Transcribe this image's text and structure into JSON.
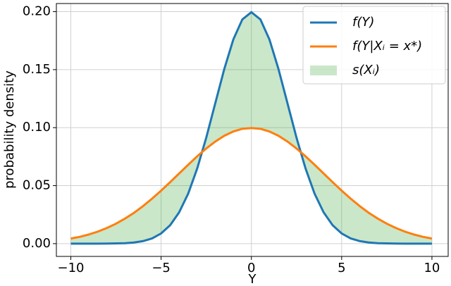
{
  "chart_data": {
    "type": "line",
    "x": [
      -10,
      -9.5,
      -9,
      -8.5,
      -8,
      -7.5,
      -7,
      -6.5,
      -6,
      -5.5,
      -5,
      -4.5,
      -4,
      -3.5,
      -3,
      -2.5,
      -2,
      -1.5,
      -1,
      -0.5,
      0,
      0.5,
      1,
      1.5,
      2,
      2.5,
      3,
      3.5,
      4,
      4.5,
      5,
      5.5,
      6,
      6.5,
      7,
      7.5,
      8,
      8.5,
      9,
      9.5,
      10
    ],
    "series": [
      {
        "name": "f(Y)",
        "color": "#1f77b4",
        "values": [
          0,
          0,
          0,
          0,
          0.0001,
          0.0002,
          0.0004,
          0.001,
          0.0022,
          0.0045,
          0.0088,
          0.0159,
          0.027,
          0.0431,
          0.0648,
          0.0913,
          0.121,
          0.1506,
          0.176,
          0.1933,
          0.1995,
          0.1933,
          0.176,
          0.1506,
          0.121,
          0.0913,
          0.0648,
          0.0431,
          0.027,
          0.0159,
          0.0088,
          0.0045,
          0.0022,
          0.001,
          0.0004,
          0.0002,
          0.0001,
          0,
          0,
          0,
          0
        ]
      },
      {
        "name": "f(Y|Xᵢ = x*)",
        "color": "#ff7f0e",
        "values": [
          0.0044,
          0.0059,
          0.0079,
          0.0104,
          0.0135,
          0.0172,
          0.0216,
          0.0266,
          0.0324,
          0.0388,
          0.0457,
          0.053,
          0.0605,
          0.068,
          0.0753,
          0.082,
          0.088,
          0.093,
          0.0967,
          0.099,
          0.0997,
          0.099,
          0.0967,
          0.093,
          0.088,
          0.082,
          0.0753,
          0.068,
          0.0605,
          0.053,
          0.0457,
          0.0388,
          0.0324,
          0.0266,
          0.0216,
          0.0172,
          0.0135,
          0.0104,
          0.0079,
          0.0059,
          0.0044
        ]
      }
    ],
    "fill": {
      "name": "s(Xᵢ)",
      "color": "#2ca02c"
    },
    "xlabel": "Y",
    "ylabel": "probability density",
    "xlim": [
      -10.8,
      10.9
    ],
    "ylim": [
      -0.011,
      0.207
    ],
    "xticks": [
      {
        "value": -10,
        "label": "−10"
      },
      {
        "value": -5,
        "label": "−5"
      },
      0,
      5,
      10
    ],
    "yticks": [
      {
        "value": 0,
        "label": "0.00"
      },
      {
        "value": 0.05,
        "label": "0.05"
      },
      {
        "value": 0.1,
        "label": "0.10"
      },
      {
        "value": 0.15,
        "label": "0.15"
      },
      {
        "value": 0.2,
        "label": "0.20"
      }
    ],
    "grid": true,
    "legend": "upper right"
  }
}
